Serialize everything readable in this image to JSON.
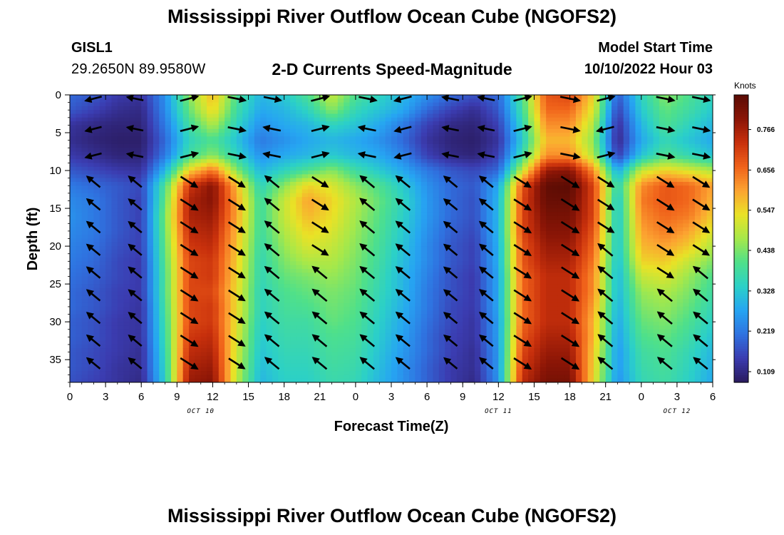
{
  "title": "Mississippi River Outflow Ocean Cube (NGOFS2)",
  "station": {
    "id": "GISL1",
    "coordinates": "29.2650N  89.9580W"
  },
  "subtitle": "2-D Currents Speed-Magnitude",
  "model_start": {
    "label": "Model Start Time",
    "value": "10/10/2022 Hour 03"
  },
  "colorbar": {
    "units": "Knots",
    "ticks": [
      "0.109",
      "0.219",
      "0.328",
      "0.438",
      "0.547",
      "0.656",
      "0.766"
    ],
    "tick_values": [
      0.109,
      0.219,
      0.328,
      0.438,
      0.547,
      0.656,
      0.766
    ],
    "range": [
      0.08,
      0.86
    ],
    "colors": [
      "#2a1a5e",
      "#3b3cb0",
      "#2f72e0",
      "#26a5f2",
      "#2bd0c8",
      "#4fe08a",
      "#a6e84a",
      "#e9e226",
      "#fca331",
      "#f0621a",
      "#c8300c",
      "#8a1506",
      "#5a0c04"
    ]
  },
  "chart_data": {
    "type": "heatmap",
    "title": "2-D Currents Speed-Magnitude",
    "xlabel": "Forecast Time(Z)",
    "ylabel": "Depth (ft)",
    "x_tick_labels": [
      "0",
      "3",
      "6",
      "9",
      "12",
      "15",
      "18",
      "21",
      "0",
      "3",
      "6",
      "9",
      "12",
      "15",
      "18",
      "21",
      "0",
      "3",
      "6"
    ],
    "x_hours": [
      0,
      3,
      6,
      9,
      12,
      15,
      18,
      21,
      24,
      27,
      30,
      33,
      36,
      39,
      42,
      45,
      48,
      51,
      54
    ],
    "xlim": [
      0,
      54
    ],
    "date_labels": [
      {
        "text": "OCT 10",
        "hour": 11
      },
      {
        "text": "OCT 11",
        "hour": 36
      },
      {
        "text": "OCT 12",
        "hour": 51
      }
    ],
    "y_tick_labels": [
      "0",
      "5",
      "10",
      "15",
      "20",
      "25",
      "30",
      "35"
    ],
    "y_ticks": [
      0,
      5,
      10,
      15,
      20,
      25,
      30,
      35
    ],
    "ylim": [
      0,
      38
    ],
    "y_reversed": true,
    "value_units": "Knots",
    "speed_description": "Speed-magnitude field sampled hourly over depth",
    "time_hours": [
      0,
      2,
      4,
      6,
      8,
      10,
      12,
      14,
      16,
      18,
      20,
      22,
      24,
      26,
      28,
      30,
      32,
      34,
      36,
      38,
      40,
      42,
      44,
      46,
      48,
      50,
      52,
      54
    ],
    "depth_ft": [
      0,
      2,
      4,
      6,
      8,
      10,
      12,
      14,
      16,
      18,
      20,
      22,
      24,
      26,
      28,
      30,
      32,
      34,
      36,
      38
    ],
    "speed_knots": [
      [
        0.2,
        0.18,
        0.14,
        0.13,
        0.25,
        0.45,
        0.58,
        0.4,
        0.3,
        0.33,
        0.4,
        0.5,
        0.4,
        0.35,
        0.3,
        0.25,
        0.2,
        0.17,
        0.2,
        0.4,
        0.68,
        0.7,
        0.55,
        0.18,
        0.35,
        0.45,
        0.4,
        0.35
      ],
      [
        0.18,
        0.15,
        0.12,
        0.11,
        0.24,
        0.42,
        0.55,
        0.38,
        0.28,
        0.3,
        0.35,
        0.45,
        0.36,
        0.32,
        0.28,
        0.2,
        0.15,
        0.12,
        0.18,
        0.38,
        0.66,
        0.66,
        0.52,
        0.15,
        0.33,
        0.42,
        0.38,
        0.33
      ],
      [
        0.13,
        0.11,
        0.1,
        0.1,
        0.22,
        0.38,
        0.48,
        0.35,
        0.25,
        0.28,
        0.3,
        0.35,
        0.32,
        0.28,
        0.22,
        0.15,
        0.11,
        0.1,
        0.15,
        0.35,
        0.62,
        0.62,
        0.48,
        0.12,
        0.3,
        0.4,
        0.35,
        0.3
      ],
      [
        0.12,
        0.1,
        0.09,
        0.09,
        0.2,
        0.35,
        0.4,
        0.32,
        0.22,
        0.25,
        0.28,
        0.3,
        0.28,
        0.25,
        0.2,
        0.13,
        0.1,
        0.09,
        0.13,
        0.33,
        0.58,
        0.58,
        0.45,
        0.11,
        0.28,
        0.36,
        0.32,
        0.28
      ],
      [
        0.14,
        0.12,
        0.1,
        0.1,
        0.22,
        0.38,
        0.45,
        0.35,
        0.25,
        0.28,
        0.3,
        0.33,
        0.3,
        0.28,
        0.23,
        0.15,
        0.11,
        0.1,
        0.15,
        0.37,
        0.62,
        0.62,
        0.48,
        0.14,
        0.32,
        0.4,
        0.36,
        0.32
      ],
      [
        0.18,
        0.16,
        0.14,
        0.13,
        0.3,
        0.55,
        0.65,
        0.45,
        0.3,
        0.35,
        0.4,
        0.45,
        0.38,
        0.33,
        0.28,
        0.22,
        0.18,
        0.16,
        0.2,
        0.5,
        0.78,
        0.8,
        0.62,
        0.28,
        0.5,
        0.55,
        0.52,
        0.48
      ],
      [
        0.22,
        0.2,
        0.18,
        0.16,
        0.4,
        0.72,
        0.8,
        0.58,
        0.35,
        0.45,
        0.55,
        0.52,
        0.45,
        0.4,
        0.33,
        0.25,
        0.2,
        0.18,
        0.28,
        0.68,
        0.85,
        0.86,
        0.7,
        0.35,
        0.62,
        0.68,
        0.66,
        0.6
      ],
      [
        0.24,
        0.22,
        0.18,
        0.15,
        0.42,
        0.76,
        0.8,
        0.6,
        0.38,
        0.5,
        0.6,
        0.55,
        0.48,
        0.42,
        0.35,
        0.26,
        0.2,
        0.17,
        0.3,
        0.7,
        0.84,
        0.84,
        0.7,
        0.32,
        0.64,
        0.68,
        0.66,
        0.58
      ],
      [
        0.25,
        0.22,
        0.18,
        0.15,
        0.44,
        0.76,
        0.78,
        0.6,
        0.38,
        0.5,
        0.58,
        0.54,
        0.47,
        0.41,
        0.34,
        0.26,
        0.2,
        0.17,
        0.3,
        0.7,
        0.82,
        0.82,
        0.7,
        0.32,
        0.62,
        0.66,
        0.64,
        0.56
      ],
      [
        0.24,
        0.22,
        0.18,
        0.15,
        0.43,
        0.74,
        0.76,
        0.58,
        0.38,
        0.48,
        0.55,
        0.52,
        0.46,
        0.4,
        0.33,
        0.25,
        0.19,
        0.16,
        0.3,
        0.7,
        0.8,
        0.8,
        0.68,
        0.32,
        0.6,
        0.64,
        0.6,
        0.52
      ],
      [
        0.23,
        0.21,
        0.17,
        0.15,
        0.42,
        0.72,
        0.74,
        0.57,
        0.37,
        0.46,
        0.52,
        0.5,
        0.45,
        0.39,
        0.32,
        0.24,
        0.18,
        0.15,
        0.29,
        0.68,
        0.78,
        0.78,
        0.66,
        0.32,
        0.58,
        0.6,
        0.56,
        0.48
      ],
      [
        0.22,
        0.2,
        0.16,
        0.14,
        0.41,
        0.7,
        0.72,
        0.56,
        0.36,
        0.44,
        0.48,
        0.48,
        0.44,
        0.38,
        0.31,
        0.24,
        0.18,
        0.15,
        0.29,
        0.68,
        0.76,
        0.76,
        0.64,
        0.31,
        0.55,
        0.56,
        0.5,
        0.44
      ],
      [
        0.21,
        0.19,
        0.16,
        0.14,
        0.4,
        0.7,
        0.72,
        0.55,
        0.36,
        0.42,
        0.44,
        0.46,
        0.43,
        0.37,
        0.3,
        0.23,
        0.17,
        0.14,
        0.28,
        0.66,
        0.74,
        0.74,
        0.62,
        0.3,
        0.5,
        0.52,
        0.46,
        0.4
      ],
      [
        0.2,
        0.18,
        0.15,
        0.14,
        0.4,
        0.7,
        0.7,
        0.54,
        0.35,
        0.4,
        0.42,
        0.44,
        0.42,
        0.36,
        0.3,
        0.22,
        0.17,
        0.14,
        0.28,
        0.66,
        0.74,
        0.74,
        0.62,
        0.3,
        0.46,
        0.48,
        0.44,
        0.38
      ],
      [
        0.2,
        0.18,
        0.15,
        0.13,
        0.39,
        0.7,
        0.72,
        0.54,
        0.35,
        0.39,
        0.4,
        0.43,
        0.41,
        0.35,
        0.29,
        0.22,
        0.16,
        0.14,
        0.28,
        0.66,
        0.74,
        0.74,
        0.6,
        0.29,
        0.44,
        0.46,
        0.42,
        0.36
      ],
      [
        0.19,
        0.17,
        0.14,
        0.13,
        0.38,
        0.7,
        0.72,
        0.53,
        0.34,
        0.38,
        0.38,
        0.42,
        0.4,
        0.34,
        0.28,
        0.21,
        0.16,
        0.13,
        0.27,
        0.66,
        0.74,
        0.74,
        0.58,
        0.28,
        0.42,
        0.44,
        0.4,
        0.34
      ],
      [
        0.19,
        0.17,
        0.14,
        0.13,
        0.37,
        0.72,
        0.74,
        0.52,
        0.33,
        0.37,
        0.37,
        0.4,
        0.39,
        0.33,
        0.27,
        0.2,
        0.15,
        0.13,
        0.27,
        0.68,
        0.76,
        0.76,
        0.58,
        0.27,
        0.4,
        0.42,
        0.38,
        0.32
      ],
      [
        0.18,
        0.16,
        0.14,
        0.12,
        0.36,
        0.74,
        0.76,
        0.51,
        0.32,
        0.36,
        0.36,
        0.39,
        0.38,
        0.32,
        0.26,
        0.2,
        0.15,
        0.12,
        0.26,
        0.7,
        0.78,
        0.78,
        0.56,
        0.26,
        0.38,
        0.4,
        0.36,
        0.3
      ],
      [
        0.18,
        0.16,
        0.13,
        0.12,
        0.35,
        0.76,
        0.78,
        0.5,
        0.31,
        0.35,
        0.35,
        0.38,
        0.37,
        0.31,
        0.25,
        0.19,
        0.14,
        0.12,
        0.26,
        0.72,
        0.8,
        0.8,
        0.55,
        0.26,
        0.37,
        0.39,
        0.35,
        0.29
      ],
      [
        0.17,
        0.15,
        0.13,
        0.11,
        0.34,
        0.78,
        0.8,
        0.49,
        0.3,
        0.34,
        0.34,
        0.37,
        0.36,
        0.3,
        0.25,
        0.19,
        0.14,
        0.11,
        0.25,
        0.74,
        0.82,
        0.82,
        0.54,
        0.25,
        0.36,
        0.38,
        0.34,
        0.28
      ]
    ],
    "arrows": {
      "times": [
        2,
        5.5,
        10,
        14,
        17,
        21,
        25,
        28,
        32,
        35,
        38,
        42,
        45,
        50,
        53
      ],
      "depths": [
        0.5,
        4.5,
        8,
        11.5,
        14.5,
        17.5,
        20.5,
        23.5,
        26.5,
        29.5,
        32.5,
        35.5
      ],
      "description": "current direction vectors"
    }
  },
  "axis_labels": {
    "x": "Forecast Time(Z)",
    "y": "Depth (ft)"
  }
}
